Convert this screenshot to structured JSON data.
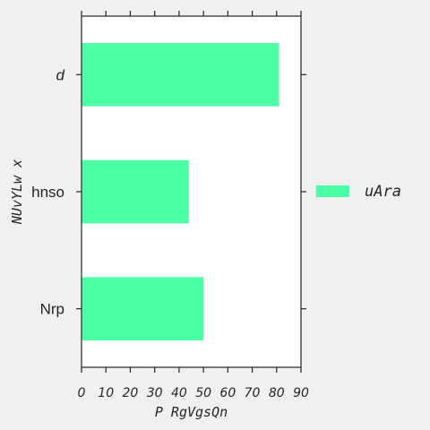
{
  "chart_data": {
    "type": "bar",
    "orientation": "horizontal",
    "categories": [
      "Nrp",
      "hnso",
      "d"
    ],
    "series": [
      {
        "name": "uAra",
        "values": [
          50,
          44,
          81
        ]
      }
    ],
    "xlabel": "P RgVgsQn",
    "ylabel": "NUvYLw x",
    "xlim": [
      0,
      90
    ],
    "xticks": [
      "0",
      "10",
      "20",
      "30",
      "40",
      "50",
      "60",
      "70",
      "80",
      "90"
    ],
    "grid": false,
    "legend": "right",
    "colors": {
      "bar": "#4bffa5",
      "background": "#f0f0f0",
      "plot_background": "#ffffff",
      "axis": "#262626"
    }
  }
}
